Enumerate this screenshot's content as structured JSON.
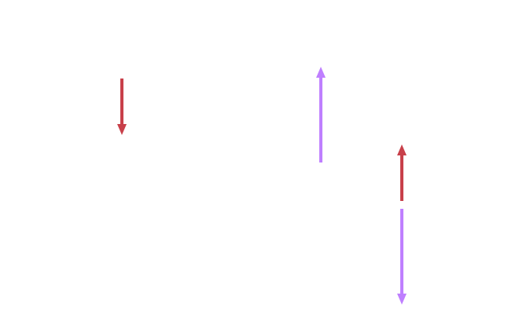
{
  "colors": {
    "red": "#c8404a",
    "purple": "#bf7fff",
    "background": "#ffffff"
  },
  "arrows": [
    {
      "id": "arrow-1",
      "direction": "down",
      "color_key": "red"
    },
    {
      "id": "arrow-2",
      "direction": "up",
      "color_key": "purple"
    },
    {
      "id": "arrow-3",
      "direction": "up",
      "color_key": "red"
    },
    {
      "id": "arrow-4",
      "direction": "down",
      "color_key": "purple"
    }
  ]
}
